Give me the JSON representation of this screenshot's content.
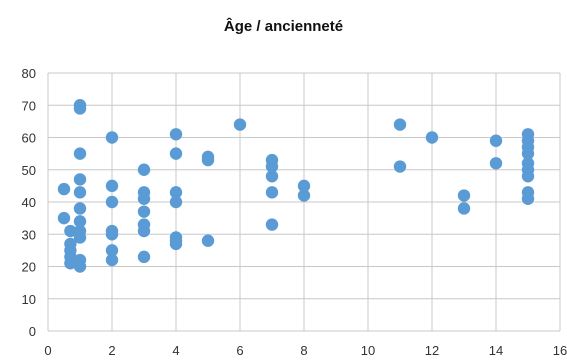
{
  "chart_data": {
    "type": "scatter",
    "title": "Âge / ancienneté",
    "xlabel": "",
    "ylabel": "",
    "xlim": [
      0,
      16
    ],
    "ylim": [
      0,
      80
    ],
    "x_ticks": [
      "0",
      "2",
      "4",
      "6",
      "8",
      "10",
      "12",
      "14",
      "16"
    ],
    "y_ticks": [
      "0",
      "10",
      "20",
      "30",
      "40",
      "50",
      "60",
      "70",
      "80"
    ],
    "grid": true,
    "marker_color": "#5b9bd5",
    "series": [
      {
        "points": [
          [
            0.5,
            44
          ],
          [
            0.5,
            35
          ],
          [
            0.7,
            31
          ],
          [
            0.7,
            27
          ],
          [
            0.7,
            25
          ],
          [
            0.7,
            23
          ],
          [
            0.7,
            21
          ],
          [
            1,
            70
          ],
          [
            1,
            69
          ],
          [
            1,
            55
          ],
          [
            1,
            47
          ],
          [
            1,
            43
          ],
          [
            1,
            38
          ],
          [
            1,
            34
          ],
          [
            1,
            31
          ],
          [
            1,
            29
          ],
          [
            1,
            22
          ],
          [
            1,
            20
          ],
          [
            2,
            60
          ],
          [
            2,
            45
          ],
          [
            2,
            40
          ],
          [
            2,
            31
          ],
          [
            2,
            30
          ],
          [
            2,
            25
          ],
          [
            2,
            22
          ],
          [
            3,
            50
          ],
          [
            3,
            43
          ],
          [
            3,
            41
          ],
          [
            3,
            37
          ],
          [
            3,
            33
          ],
          [
            3,
            31
          ],
          [
            3,
            23
          ],
          [
            4,
            61
          ],
          [
            4,
            55
          ],
          [
            4,
            43
          ],
          [
            4,
            40
          ],
          [
            4,
            29
          ],
          [
            4,
            28
          ],
          [
            4,
            27
          ],
          [
            5,
            54
          ],
          [
            5,
            53
          ],
          [
            5,
            28
          ],
          [
            6,
            64
          ],
          [
            7,
            53
          ],
          [
            7,
            51
          ],
          [
            7,
            48
          ],
          [
            7,
            43
          ],
          [
            7,
            33
          ],
          [
            8,
            45
          ],
          [
            8,
            42
          ],
          [
            11,
            64
          ],
          [
            11,
            51
          ],
          [
            12,
            60
          ],
          [
            13,
            42
          ],
          [
            13,
            38
          ],
          [
            14,
            59
          ],
          [
            14,
            52
          ],
          [
            15,
            61
          ],
          [
            15,
            59
          ],
          [
            15,
            57
          ],
          [
            15,
            55
          ],
          [
            15,
            52
          ],
          [
            15,
            50
          ],
          [
            15,
            48
          ],
          [
            15,
            43
          ],
          [
            15,
            41
          ]
        ]
      }
    ]
  }
}
